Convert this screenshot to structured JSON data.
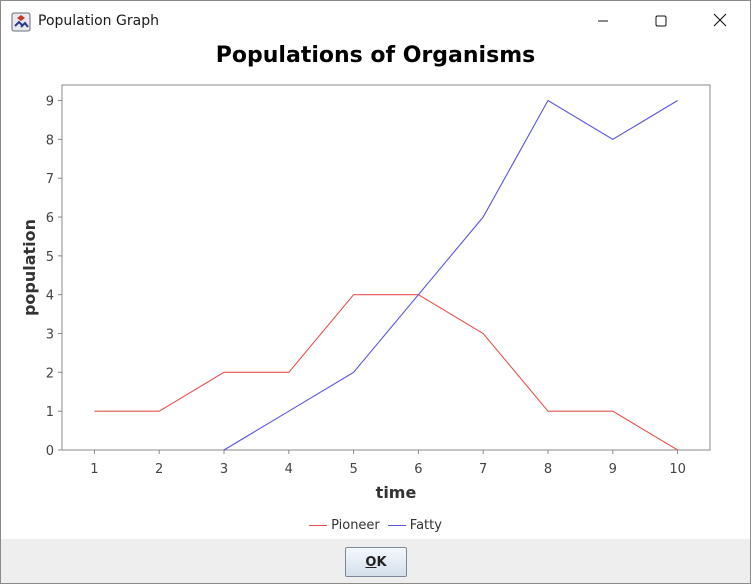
{
  "window": {
    "title": "Population Graph",
    "controls": {
      "minimize": "minimize-icon",
      "maximize": "maximize-icon",
      "close": "close-icon"
    }
  },
  "chart_data": {
    "type": "line",
    "title": "Populations of Organisms",
    "xlabel": "time",
    "ylabel": "population",
    "x": [
      1,
      2,
      3,
      4,
      5,
      6,
      7,
      8,
      9,
      10
    ],
    "xlim": [
      0.5,
      10.5
    ],
    "ylim": [
      0,
      9.4
    ],
    "yticks": [
      0,
      1,
      2,
      3,
      4,
      5,
      6,
      7,
      8,
      9
    ],
    "grid": false,
    "legend_position": "bottom",
    "series": [
      {
        "name": "Pioneer",
        "color": "#e8524f",
        "x": [
          1,
          2,
          3,
          4,
          5,
          6,
          7,
          8,
          9,
          10
        ],
        "values": [
          1,
          1,
          2,
          2,
          4,
          4,
          3,
          1,
          1,
          0
        ]
      },
      {
        "name": "Fatty",
        "color": "#5a56e0",
        "x": [
          3,
          4,
          5,
          6,
          7,
          8,
          9,
          10
        ],
        "values": [
          0,
          1,
          2,
          4,
          6,
          9,
          8,
          9
        ]
      }
    ]
  },
  "buttons": {
    "ok_mnemonic": "O",
    "ok_rest": "K"
  }
}
